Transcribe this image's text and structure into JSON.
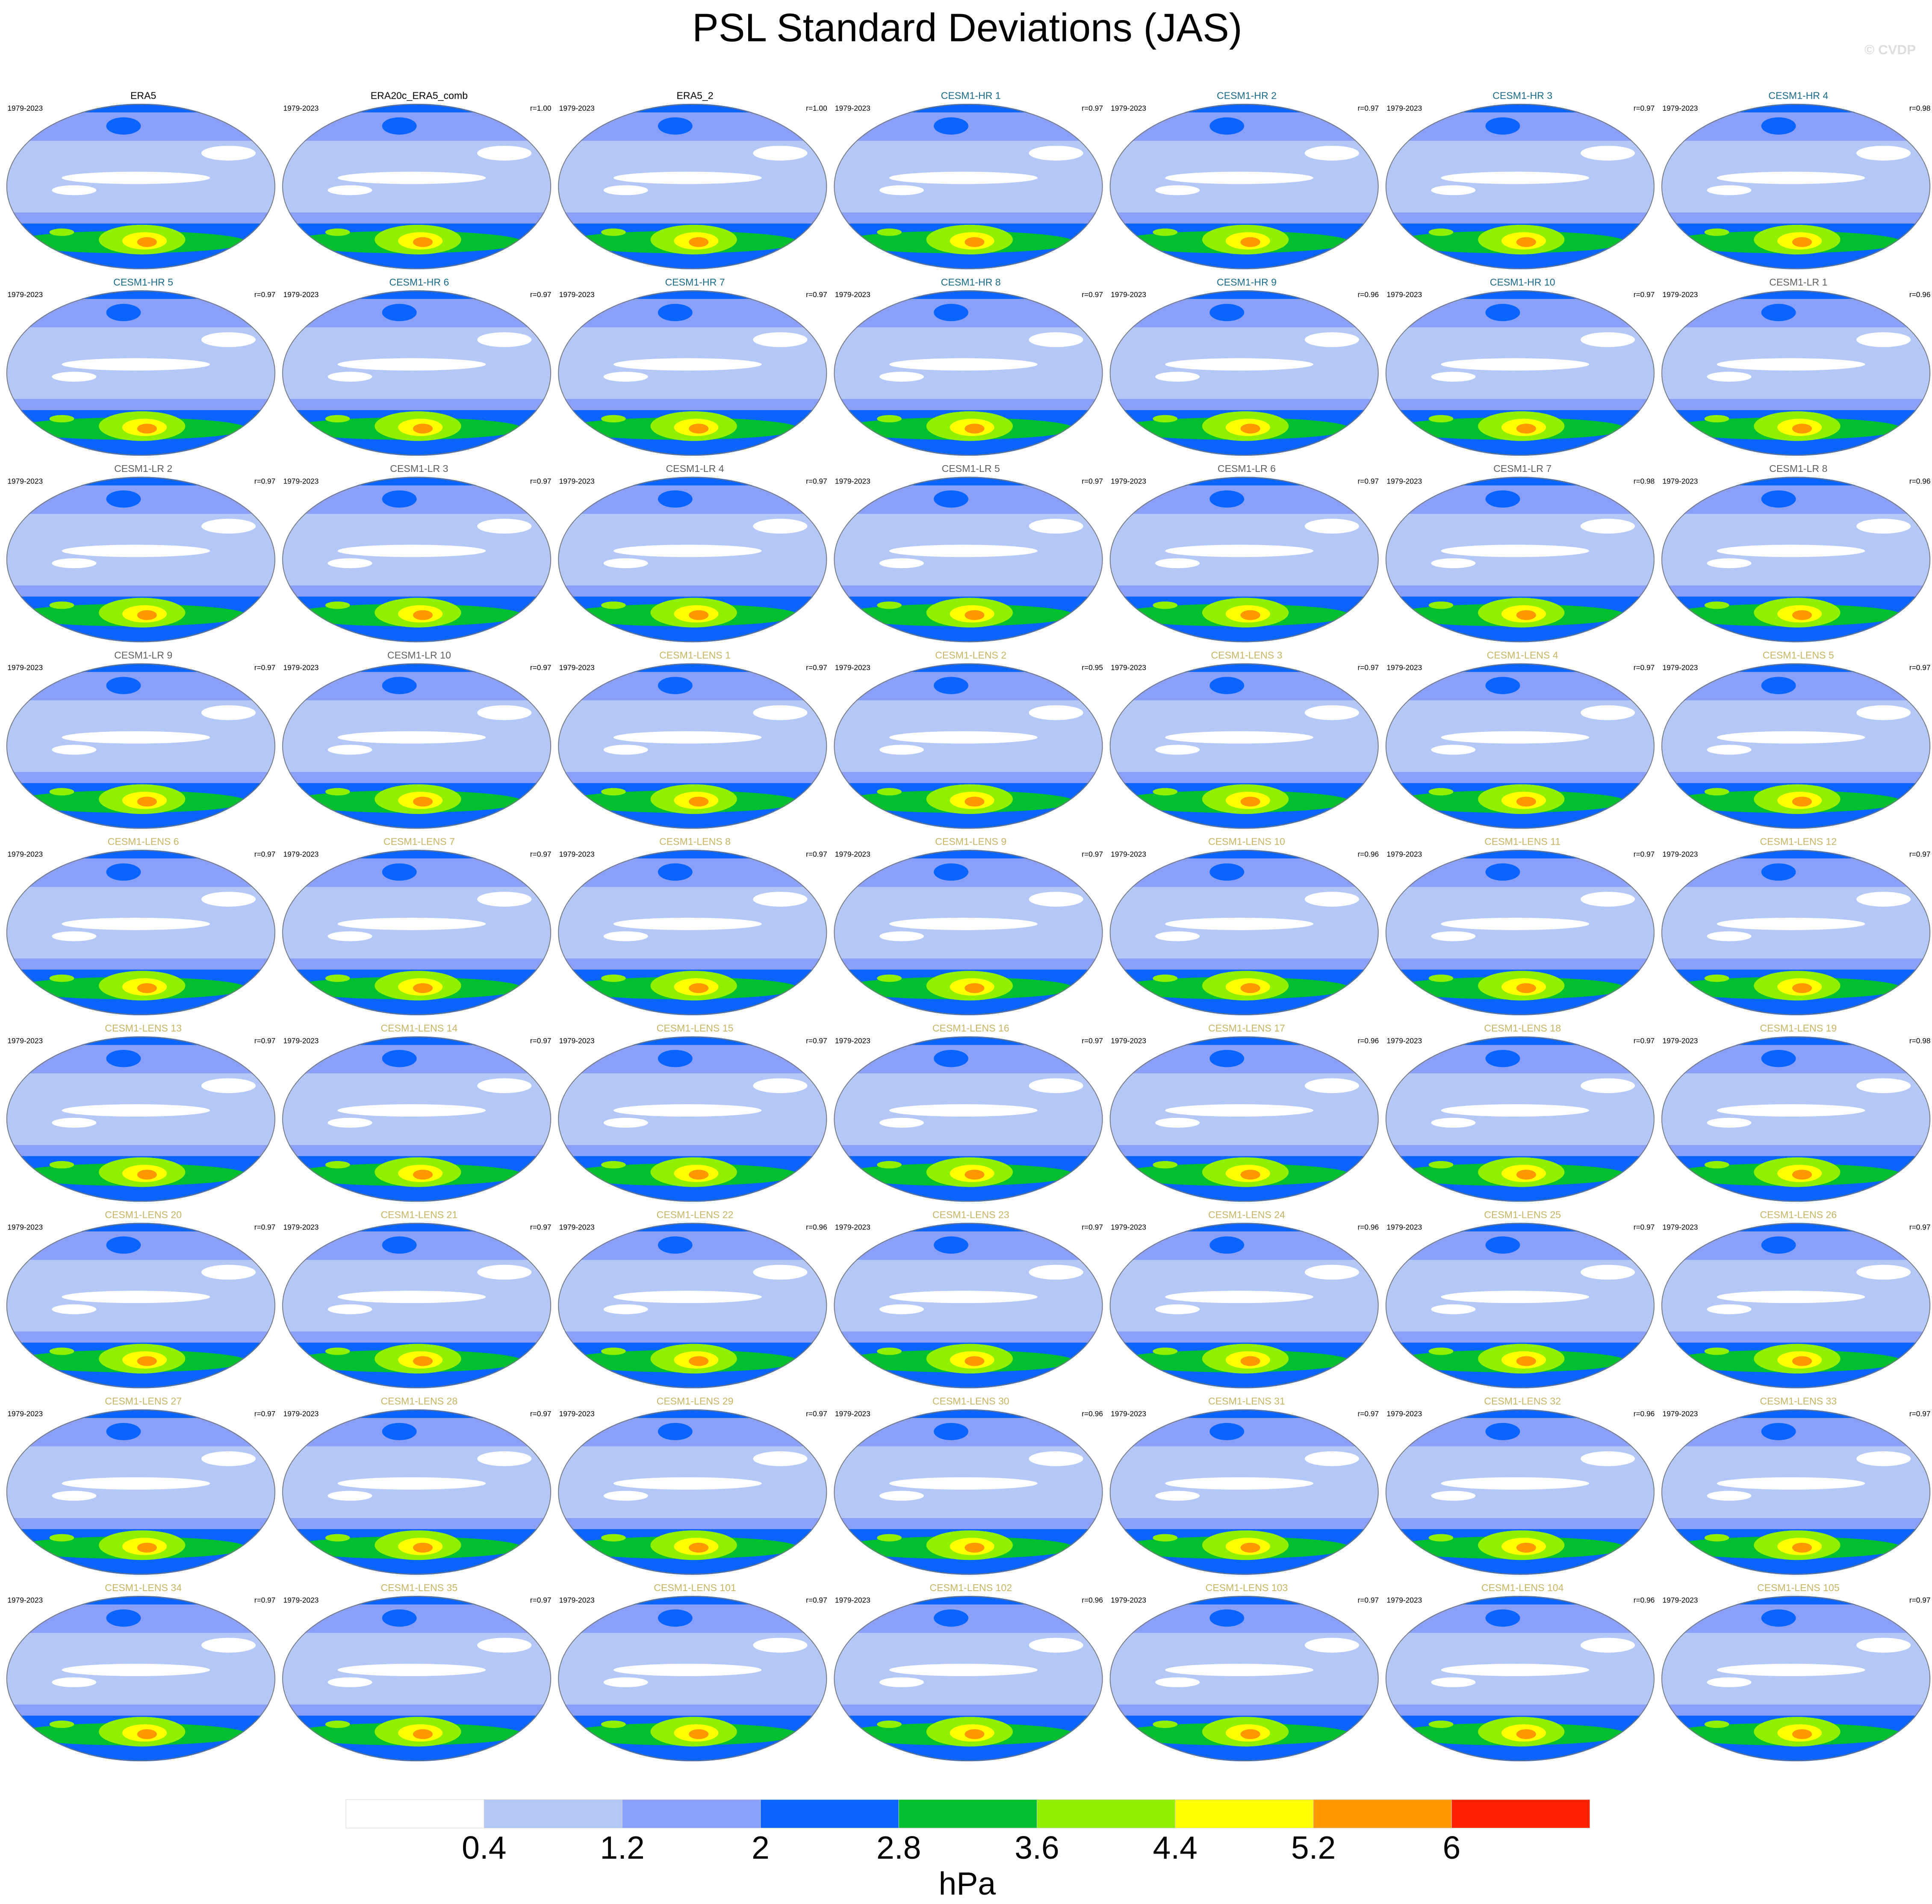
{
  "title": "PSL Standard Deviations (JAS)",
  "watermark": "© CVDP",
  "panels": [
    {
      "name": "ERA5",
      "period": "1979-2023",
      "color": "#000000"
    },
    {
      "name": "ERA20c_ERA5_comb",
      "period": "1979-2023",
      "r": "r=1.00",
      "color": "#000000"
    },
    {
      "name": "ERA5_2",
      "period": "1979-2023",
      "r": "r=1.00",
      "color": "#000000"
    },
    {
      "name": "CESM1-HR 1",
      "period": "1979-2023",
      "r": "r=0.97",
      "color": "#1b6a8a"
    },
    {
      "name": "CESM1-HR 2",
      "period": "1979-2023",
      "r": "r=0.97",
      "color": "#1b6a8a"
    },
    {
      "name": "CESM1-HR 3",
      "period": "1979-2023",
      "r": "r=0.97",
      "color": "#1b6a8a"
    },
    {
      "name": "CESM1-HR 4",
      "period": "1979-2023",
      "r": "r=0.98",
      "color": "#1b6a8a"
    },
    {
      "name": "CESM1-HR 5",
      "period": "1979-2023",
      "r": "r=0.97",
      "color": "#1b6a8a"
    },
    {
      "name": "CESM1-HR 6",
      "period": "1979-2023",
      "r": "r=0.97",
      "color": "#1b6a8a"
    },
    {
      "name": "CESM1-HR 7",
      "period": "1979-2023",
      "r": "r=0.97",
      "color": "#1b6a8a"
    },
    {
      "name": "CESM1-HR 8",
      "period": "1979-2023",
      "r": "r=0.97",
      "color": "#1b6a8a"
    },
    {
      "name": "CESM1-HR 9",
      "period": "1979-2023",
      "r": "r=0.96",
      "color": "#1b6a8a"
    },
    {
      "name": "CESM1-HR 10",
      "period": "1979-2023",
      "r": "r=0.97",
      "color": "#1b6a8a"
    },
    {
      "name": "CESM1-LR 1",
      "period": "1979-2023",
      "r": "r=0.96",
      "color": "#606060"
    },
    {
      "name": "CESM1-LR 2",
      "period": "1979-2023",
      "r": "r=0.97",
      "color": "#606060"
    },
    {
      "name": "CESM1-LR 3",
      "period": "1979-2023",
      "r": "r=0.97",
      "color": "#606060"
    },
    {
      "name": "CESM1-LR 4",
      "period": "1979-2023",
      "r": "r=0.97",
      "color": "#606060"
    },
    {
      "name": "CESM1-LR 5",
      "period": "1979-2023",
      "r": "r=0.97",
      "color": "#606060"
    },
    {
      "name": "CESM1-LR 6",
      "period": "1979-2023",
      "r": "r=0.97",
      "color": "#606060"
    },
    {
      "name": "CESM1-LR 7",
      "period": "1979-2023",
      "r": "r=0.98",
      "color": "#606060"
    },
    {
      "name": "CESM1-LR 8",
      "period": "1979-2023",
      "r": "r=0.96",
      "color": "#606060"
    },
    {
      "name": "CESM1-LR 9",
      "period": "1979-2023",
      "r": "r=0.97",
      "color": "#606060"
    },
    {
      "name": "CESM1-LR 10",
      "period": "1979-2023",
      "r": "r=0.97",
      "color": "#606060"
    },
    {
      "name": "CESM1-LENS 1",
      "period": "1979-2023",
      "r": "r=0.97",
      "color": "#c8b464"
    },
    {
      "name": "CESM1-LENS 2",
      "period": "1979-2023",
      "r": "r=0.95",
      "color": "#c8b464"
    },
    {
      "name": "CESM1-LENS 3",
      "period": "1979-2023",
      "r": "r=0.97",
      "color": "#c8b464"
    },
    {
      "name": "CESM1-LENS 4",
      "period": "1979-2023",
      "r": "r=0.97",
      "color": "#c8b464"
    },
    {
      "name": "CESM1-LENS 5",
      "period": "1979-2023",
      "r": "r=0.97",
      "color": "#c8b464"
    },
    {
      "name": "CESM1-LENS 6",
      "period": "1979-2023",
      "r": "r=0.97",
      "color": "#c8b464"
    },
    {
      "name": "CESM1-LENS 7",
      "period": "1979-2023",
      "r": "r=0.97",
      "color": "#c8b464"
    },
    {
      "name": "CESM1-LENS 8",
      "period": "1979-2023",
      "r": "r=0.97",
      "color": "#c8b464"
    },
    {
      "name": "CESM1-LENS 9",
      "period": "1979-2023",
      "r": "r=0.97",
      "color": "#c8b464"
    },
    {
      "name": "CESM1-LENS 10",
      "period": "1979-2023",
      "r": "r=0.96",
      "color": "#c8b464"
    },
    {
      "name": "CESM1-LENS 11",
      "period": "1979-2023",
      "r": "r=0.97",
      "color": "#c8b464"
    },
    {
      "name": "CESM1-LENS 12",
      "period": "1979-2023",
      "r": "r=0.97",
      "color": "#c8b464"
    },
    {
      "name": "CESM1-LENS 13",
      "period": "1979-2023",
      "r": "r=0.97",
      "color": "#c8b464"
    },
    {
      "name": "CESM1-LENS 14",
      "period": "1979-2023",
      "r": "r=0.97",
      "color": "#c8b464"
    },
    {
      "name": "CESM1-LENS 15",
      "period": "1979-2023",
      "r": "r=0.97",
      "color": "#c8b464"
    },
    {
      "name": "CESM1-LENS 16",
      "period": "1979-2023",
      "r": "r=0.97",
      "color": "#c8b464"
    },
    {
      "name": "CESM1-LENS 17",
      "period": "1979-2023",
      "r": "r=0.96",
      "color": "#c8b464"
    },
    {
      "name": "CESM1-LENS 18",
      "period": "1979-2023",
      "r": "r=0.97",
      "color": "#c8b464"
    },
    {
      "name": "CESM1-LENS 19",
      "period": "1979-2023",
      "r": "r=0.98",
      "color": "#c8b464"
    },
    {
      "name": "CESM1-LENS 20",
      "period": "1979-2023",
      "r": "r=0.97",
      "color": "#c8b464"
    },
    {
      "name": "CESM1-LENS 21",
      "period": "1979-2023",
      "r": "r=0.97",
      "color": "#c8b464"
    },
    {
      "name": "CESM1-LENS 22",
      "period": "1979-2023",
      "r": "r=0.96",
      "color": "#c8b464"
    },
    {
      "name": "CESM1-LENS 23",
      "period": "1979-2023",
      "r": "r=0.97",
      "color": "#c8b464"
    },
    {
      "name": "CESM1-LENS 24",
      "period": "1979-2023",
      "r": "r=0.96",
      "color": "#c8b464"
    },
    {
      "name": "CESM1-LENS 25",
      "period": "1979-2023",
      "r": "r=0.97",
      "color": "#c8b464"
    },
    {
      "name": "CESM1-LENS 26",
      "period": "1979-2023",
      "r": "r=0.97",
      "color": "#c8b464"
    },
    {
      "name": "CESM1-LENS 27",
      "period": "1979-2023",
      "r": "r=0.97",
      "color": "#c8b464"
    },
    {
      "name": "CESM1-LENS 28",
      "period": "1979-2023",
      "r": "r=0.97",
      "color": "#c8b464"
    },
    {
      "name": "CESM1-LENS 29",
      "period": "1979-2023",
      "r": "r=0.97",
      "color": "#c8b464"
    },
    {
      "name": "CESM1-LENS 30",
      "period": "1979-2023",
      "r": "r=0.96",
      "color": "#c8b464"
    },
    {
      "name": "CESM1-LENS 31",
      "period": "1979-2023",
      "r": "r=0.97",
      "color": "#c8b464"
    },
    {
      "name": "CESM1-LENS 32",
      "period": "1979-2023",
      "r": "r=0.96",
      "color": "#c8b464"
    },
    {
      "name": "CESM1-LENS 33",
      "period": "1979-2023",
      "r": "r=0.97",
      "color": "#c8b464"
    },
    {
      "name": "CESM1-LENS 34",
      "period": "1979-2023",
      "r": "r=0.97",
      "color": "#c8b464"
    },
    {
      "name": "CESM1-LENS 35",
      "period": "1979-2023",
      "r": "r=0.97",
      "color": "#c8b464"
    },
    {
      "name": "CESM1-LENS 101",
      "period": "1979-2023",
      "r": "r=0.97",
      "color": "#c8b464"
    },
    {
      "name": "CESM1-LENS 102",
      "period": "1979-2023",
      "r": "r=0.96",
      "color": "#c8b464"
    },
    {
      "name": "CESM1-LENS 103",
      "period": "1979-2023",
      "r": "r=0.97",
      "color": "#c8b464"
    },
    {
      "name": "CESM1-LENS 104",
      "period": "1979-2023",
      "r": "r=0.96",
      "color": "#c8b464"
    },
    {
      "name": "CESM1-LENS 105",
      "period": "1979-2023",
      "r": "r=0.97",
      "color": "#c8b464"
    }
  ],
  "colorbar": {
    "colors": [
      "#ffffff",
      "#b4c8f8",
      "#8aa0f8",
      "#0a64ff",
      "#00c030",
      "#90f000",
      "#ffff00",
      "#ff9800",
      "#ff2000"
    ],
    "ticks": [
      0.4,
      1.2,
      2,
      2.8,
      3.6,
      4.4,
      5.2,
      6
    ],
    "label": "hPa"
  }
}
